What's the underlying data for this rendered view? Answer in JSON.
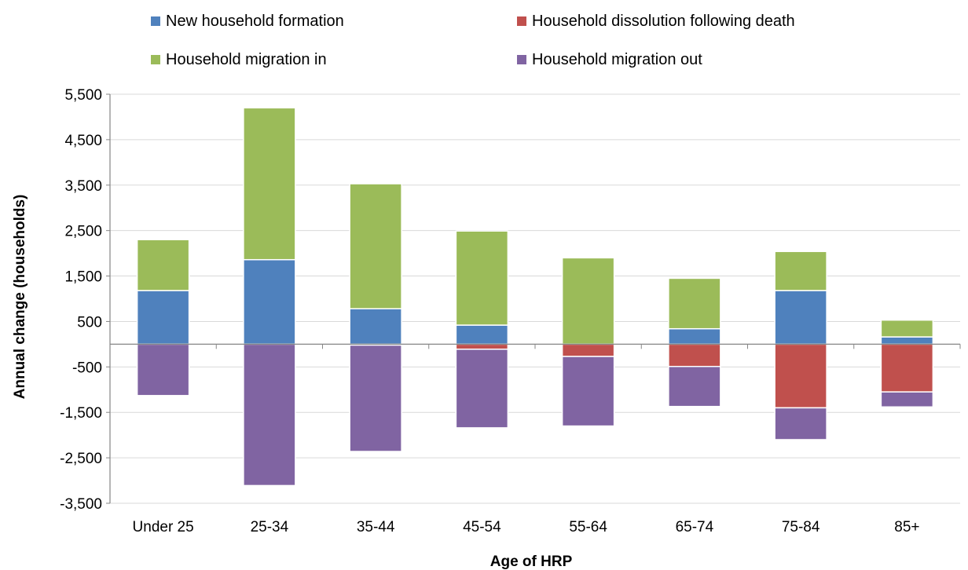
{
  "chart_data": {
    "type": "bar",
    "stacked": true,
    "xlabel": "Age of HRP",
    "ylabel": "Annual change (households)",
    "categories": [
      "Under 25",
      "25-34",
      "35-44",
      "45-54",
      "55-64",
      "65-74",
      "75-84",
      "85+"
    ],
    "series": [
      {
        "name": "New household formation",
        "color": "#4f81bd",
        "direction": "positive",
        "values": [
          1180,
          1860,
          780,
          420,
          0,
          340,
          1180,
          160
        ]
      },
      {
        "name": "Household migration in",
        "color": "#9bbb59",
        "direction": "positive",
        "values": [
          1120,
          3340,
          2750,
          2070,
          1900,
          1110,
          860,
          370
        ]
      },
      {
        "name": "Household dissolution following death",
        "color": "#c0504d",
        "direction": "negative",
        "values": [
          0,
          0,
          -20,
          -110,
          -270,
          -490,
          -1400,
          -1050
        ]
      },
      {
        "name": "Household migration out",
        "color": "#8064a2",
        "direction": "negative",
        "values": [
          -1130,
          -3110,
          -2340,
          -1730,
          -1530,
          -880,
          -700,
          -330
        ]
      }
    ],
    "ylim": [
      -3500,
      5500
    ],
    "yticks": [
      5500,
      4500,
      3500,
      2500,
      1500,
      500,
      -500,
      -1500,
      -2500,
      -3500
    ],
    "ytick_labels": [
      "5,500",
      "4,500",
      "3,500",
      "2,500",
      "1,500",
      "500",
      "-500",
      "-1,500",
      "-2,500",
      "-3,500"
    ],
    "grid": true,
    "legend": {
      "position": "top",
      "rows": [
        [
          "New household formation",
          "Household dissolution following death"
        ],
        [
          "Household migration in",
          "Household migration out"
        ]
      ]
    }
  }
}
